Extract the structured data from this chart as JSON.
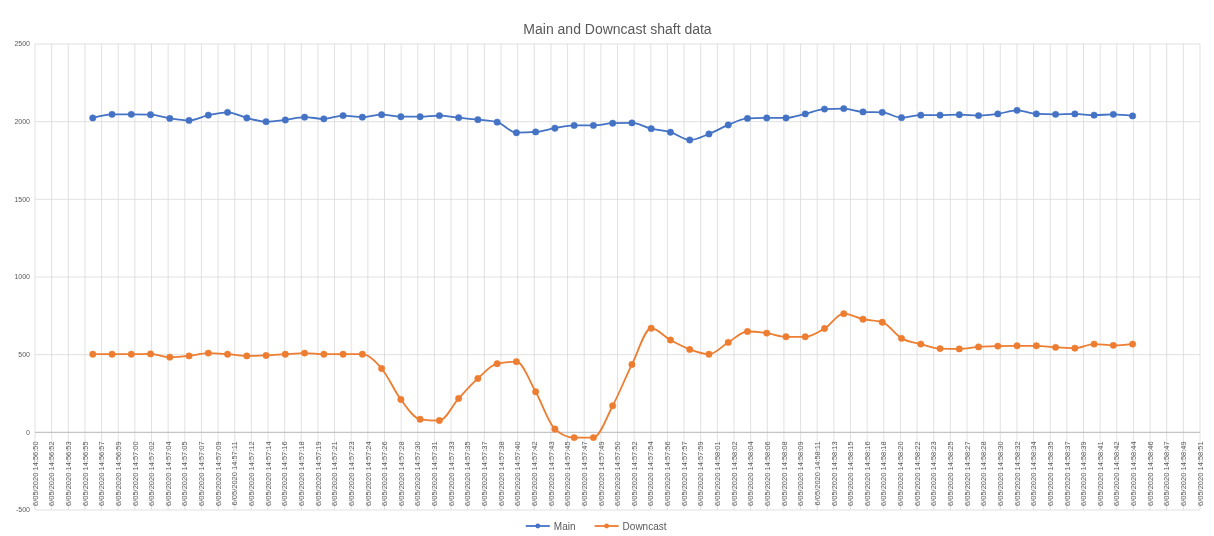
{
  "chart_data": {
    "type": "line",
    "title": "Main and Downcast shaft data",
    "x": [
      "2020-05-06T14:56:56",
      "2020-05-06T14:56:58",
      "2020-05-06T14:57:00",
      "2020-05-06T14:57:02",
      "2020-05-06T14:57:04",
      "2020-05-06T14:57:06",
      "2020-05-06T14:57:08",
      "2020-05-06T14:57:10",
      "2020-05-06T14:57:12",
      "2020-05-06T14:57:14",
      "2020-05-06T14:57:16",
      "2020-05-06T14:57:18",
      "2020-05-06T14:57:20",
      "2020-05-06T14:57:22",
      "2020-05-06T14:57:24",
      "2020-05-06T14:57:26",
      "2020-05-06T14:57:28",
      "2020-05-06T14:57:30",
      "2020-05-06T14:57:32",
      "2020-05-06T14:57:34",
      "2020-05-06T14:57:36",
      "2020-05-06T14:57:38",
      "2020-05-06T14:57:40",
      "2020-05-06T14:57:42",
      "2020-05-06T14:57:44",
      "2020-05-06T14:57:46",
      "2020-05-06T14:57:48",
      "2020-05-06T14:57:50",
      "2020-05-06T14:57:52",
      "2020-05-06T14:57:54",
      "2020-05-06T14:57:56",
      "2020-05-06T14:57:58",
      "2020-05-06T14:58:00",
      "2020-05-06T14:58:02",
      "2020-05-06T14:58:04",
      "2020-05-06T14:58:06",
      "2020-05-06T14:58:08",
      "2020-05-06T14:58:10",
      "2020-05-06T14:58:12",
      "2020-05-06T14:58:14",
      "2020-05-06T14:58:16",
      "2020-05-06T14:58:18",
      "2020-05-06T14:58:20",
      "2020-05-06T14:58:22",
      "2020-05-06T14:58:24",
      "2020-05-06T14:58:26",
      "2020-05-06T14:58:28",
      "2020-05-06T14:58:30",
      "2020-05-06T14:58:32",
      "2020-05-06T14:58:34",
      "2020-05-06T14:58:36",
      "2020-05-06T14:58:38",
      "2020-05-06T14:58:40",
      "2020-05-06T14:58:42",
      "2020-05-06T14:58:44"
    ],
    "series": [
      {
        "name": "Main",
        "color": "#4472c4",
        "values": [
          2024,
          2047,
          2047,
          2045,
          2021,
          2008,
          2042,
          2060,
          2024,
          2000,
          2011,
          2029,
          2018,
          2039,
          2029,
          2045,
          2032,
          2032,
          2039,
          2026,
          2013,
          1997,
          1929,
          1934,
          1958,
          1976,
          1976,
          1990,
          1992,
          1955,
          1932,
          1882,
          1921,
          1979,
          2021,
          2024,
          2024,
          2050,
          2081,
          2084,
          2063,
          2060,
          2026,
          2042,
          2042,
          2045,
          2039,
          2050,
          2073,
          2050,
          2047,
          2050,
          2042,
          2047,
          2037
        ]
      },
      {
        "name": "Downcast",
        "color": "#ed7d31",
        "values": [
          503,
          503,
          503,
          505,
          484,
          492,
          510,
          503,
          492,
          495,
          503,
          510,
          503,
          503,
          503,
          411,
          211,
          84,
          76,
          218,
          347,
          442,
          455,
          261,
          21,
          -34,
          -34,
          171,
          437,
          670,
          594,
          534,
          503,
          579,
          649,
          639,
          615,
          615,
          668,
          764,
          728,
          709,
          605,
          568,
          539,
          537,
          550,
          555,
          557,
          557,
          547,
          542,
          568,
          560,
          568
        ]
      }
    ],
    "xlim": [
      "2020-05-06T14:56:50",
      "2020-05-06T14:58:51"
    ],
    "xticks": [
      {
        "value": "2020-05-06T14:56:50.000",
        "label": "6/05/2020 14:56:50"
      },
      {
        "value": "2020-05-06T14:56:51.729",
        "label": "6/05/2020 14:56:52"
      },
      {
        "value": "2020-05-06T14:56:53.457",
        "label": "6/05/2020 14:56:53"
      },
      {
        "value": "2020-05-06T14:56:55.186",
        "label": "6/05/2020 14:56:55"
      },
      {
        "value": "2020-05-06T14:56:56.914",
        "label": "6/05/2020 14:56:57"
      },
      {
        "value": "2020-05-06T14:56:58.643",
        "label": "6/05/2020 14:56:59"
      },
      {
        "value": "2020-05-06T14:57:00.371",
        "label": "6/05/2020 14:57:00"
      },
      {
        "value": "2020-05-06T14:57:02.100",
        "label": "6/05/2020 14:57:02"
      },
      {
        "value": "2020-05-06T14:57:03.829",
        "label": "6/05/2020 14:57:04"
      },
      {
        "value": "2020-05-06T14:57:05.557",
        "label": "6/05/2020 14:57:05"
      },
      {
        "value": "2020-05-06T14:57:07.286",
        "label": "6/05/2020 14:57:07"
      },
      {
        "value": "2020-05-06T14:57:09.014",
        "label": "6/05/2020 14:57:09"
      },
      {
        "value": "2020-05-06T14:57:10.743",
        "label": "6/05/2020 14:57:11"
      },
      {
        "value": "2020-05-06T14:57:12.471",
        "label": "6/05/2020 14:57:12"
      },
      {
        "value": "2020-05-06T14:57:14.200",
        "label": "6/05/2020 14:57:14"
      },
      {
        "value": "2020-05-06T14:57:15.929",
        "label": "6/05/2020 14:57:16"
      },
      {
        "value": "2020-05-06T14:57:17.657",
        "label": "6/05/2020 14:57:18"
      },
      {
        "value": "2020-05-06T14:57:19.386",
        "label": "6/05/2020 14:57:19"
      },
      {
        "value": "2020-05-06T14:57:21.114",
        "label": "6/05/2020 14:57:21"
      },
      {
        "value": "2020-05-06T14:57:22.843",
        "label": "6/05/2020 14:57:23"
      },
      {
        "value": "2020-05-06T14:57:24.571",
        "label": "6/05/2020 14:57:24"
      },
      {
        "value": "2020-05-06T14:57:26.300",
        "label": "6/05/2020 14:57:26"
      },
      {
        "value": "2020-05-06T14:57:28.029",
        "label": "6/05/2020 14:57:28"
      },
      {
        "value": "2020-05-06T14:57:29.757",
        "label": "6/05/2020 14:57:30"
      },
      {
        "value": "2020-05-06T14:57:31.486",
        "label": "6/05/2020 14:57:31"
      },
      {
        "value": "2020-05-06T14:57:33.214",
        "label": "6/05/2020 14:57:33"
      },
      {
        "value": "2020-05-06T14:57:34.943",
        "label": "6/05/2020 14:57:35"
      },
      {
        "value": "2020-05-06T14:57:36.671",
        "label": "6/05/2020 14:57:37"
      },
      {
        "value": "2020-05-06T14:57:38.400",
        "label": "6/05/2020 14:57:38"
      },
      {
        "value": "2020-05-06T14:57:40.129",
        "label": "6/05/2020 14:57:40"
      },
      {
        "value": "2020-05-06T14:57:41.857",
        "label": "6/05/2020 14:57:42"
      },
      {
        "value": "2020-05-06T14:57:43.586",
        "label": "6/05/2020 14:57:43"
      },
      {
        "value": "2020-05-06T14:57:45.314",
        "label": "6/05/2020 14:57:45"
      },
      {
        "value": "2020-05-06T14:57:47.043",
        "label": "6/05/2020 14:57:47"
      },
      {
        "value": "2020-05-06T14:57:48.771",
        "label": "6/05/2020 14:57:49"
      },
      {
        "value": "2020-05-06T14:57:50.500",
        "label": "6/05/2020 14:57:50"
      },
      {
        "value": "2020-05-06T14:57:52.229",
        "label": "6/05/2020 14:57:52"
      },
      {
        "value": "2020-05-06T14:57:53.957",
        "label": "6/05/2020 14:57:54"
      },
      {
        "value": "2020-05-06T14:57:55.686",
        "label": "6/05/2020 14:57:56"
      },
      {
        "value": "2020-05-06T14:57:57.414",
        "label": "6/05/2020 14:57:57"
      },
      {
        "value": "2020-05-06T14:57:59.143",
        "label": "6/05/2020 14:57:59"
      },
      {
        "value": "2020-05-06T14:58:00.871",
        "label": "6/05/2020 14:58:01"
      },
      {
        "value": "2020-05-06T14:58:02.600",
        "label": "6/05/2020 14:58:02"
      },
      {
        "value": "2020-05-06T14:58:04.329",
        "label": "6/05/2020 14:58:04"
      },
      {
        "value": "2020-05-06T14:58:06.057",
        "label": "6/05/2020 14:58:06"
      },
      {
        "value": "2020-05-06T14:58:07.786",
        "label": "6/05/2020 14:58:08"
      },
      {
        "value": "2020-05-06T14:58:09.514",
        "label": "6/05/2020 14:58:09"
      },
      {
        "value": "2020-05-06T14:58:11.243",
        "label": "6/05/2020 14:58:11"
      },
      {
        "value": "2020-05-06T14:58:12.971",
        "label": "6/05/2020 14:58:13"
      },
      {
        "value": "2020-05-06T14:58:14.700",
        "label": "6/05/2020 14:58:15"
      },
      {
        "value": "2020-05-06T14:58:16.429",
        "label": "6/05/2020 14:58:16"
      },
      {
        "value": "2020-05-06T14:58:18.157",
        "label": "6/05/2020 14:58:18"
      },
      {
        "value": "2020-05-06T14:58:19.886",
        "label": "6/05/2020 14:58:20"
      },
      {
        "value": "2020-05-06T14:58:21.614",
        "label": "6/05/2020 14:58:22"
      },
      {
        "value": "2020-05-06T14:58:23.343",
        "label": "6/05/2020 14:58:23"
      },
      {
        "value": "2020-05-06T14:58:25.071",
        "label": "6/05/2020 14:58:25"
      },
      {
        "value": "2020-05-06T14:58:26.800",
        "label": "6/05/2020 14:58:27"
      },
      {
        "value": "2020-05-06T14:58:28.529",
        "label": "6/05/2020 14:58:28"
      },
      {
        "value": "2020-05-06T14:58:30.257",
        "label": "6/05/2020 14:58:30"
      },
      {
        "value": "2020-05-06T14:58:31.986",
        "label": "6/05/2020 14:58:32"
      },
      {
        "value": "2020-05-06T14:58:33.714",
        "label": "6/05/2020 14:58:34"
      },
      {
        "value": "2020-05-06T14:58:35.443",
        "label": "6/05/2020 14:58:35"
      },
      {
        "value": "2020-05-06T14:58:37.171",
        "label": "6/05/2020 14:58:37"
      },
      {
        "value": "2020-05-06T14:58:38.900",
        "label": "6/05/2020 14:58:39"
      },
      {
        "value": "2020-05-06T14:58:40.629",
        "label": "6/05/2020 14:58:41"
      },
      {
        "value": "2020-05-06T14:58:42.357",
        "label": "6/05/2020 14:58:42"
      },
      {
        "value": "2020-05-06T14:58:44.086",
        "label": "6/05/2020 14:58:44"
      },
      {
        "value": "2020-05-06T14:58:45.814",
        "label": "6/05/2020 14:58:46"
      },
      {
        "value": "2020-05-06T14:58:47.543",
        "label": "6/05/2020 14:58:47"
      },
      {
        "value": "2020-05-06T14:58:49.271",
        "label": "6/05/2020 14:58:49"
      },
      {
        "value": "2020-05-06T14:58:51.000",
        "label": "6/05/2020 14:58:51"
      }
    ],
    "ylim": [
      -500,
      2500
    ],
    "yticks": [
      -500,
      0,
      500,
      1000,
      1500,
      2000,
      2500
    ],
    "grid": true,
    "legend": "bottom",
    "marker": "circle",
    "line_style": "solid"
  }
}
